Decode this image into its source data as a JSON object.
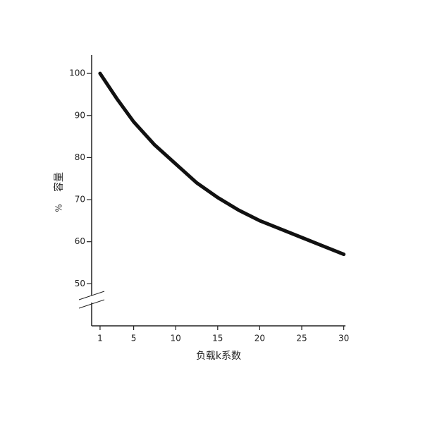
{
  "chart_data": {
    "type": "line",
    "y_label": "容量",
    "y_unit": "%",
    "x_label": "负载k系数",
    "x": [
      1,
      3,
      5,
      7.5,
      10,
      12.5,
      15,
      17.5,
      20,
      22.5,
      25,
      27.5,
      30
    ],
    "values": [
      100,
      94,
      88.5,
      83,
      78.5,
      74,
      70.5,
      67.5,
      65,
      63,
      61,
      59,
      57
    ],
    "color": "#111111",
    "xlim": [
      0,
      30
    ],
    "ylim": [
      40,
      105
    ],
    "xticks": [
      1,
      5,
      10,
      15,
      20,
      25,
      30
    ],
    "yticks": [
      50,
      60,
      70,
      80,
      90,
      100
    ]
  }
}
